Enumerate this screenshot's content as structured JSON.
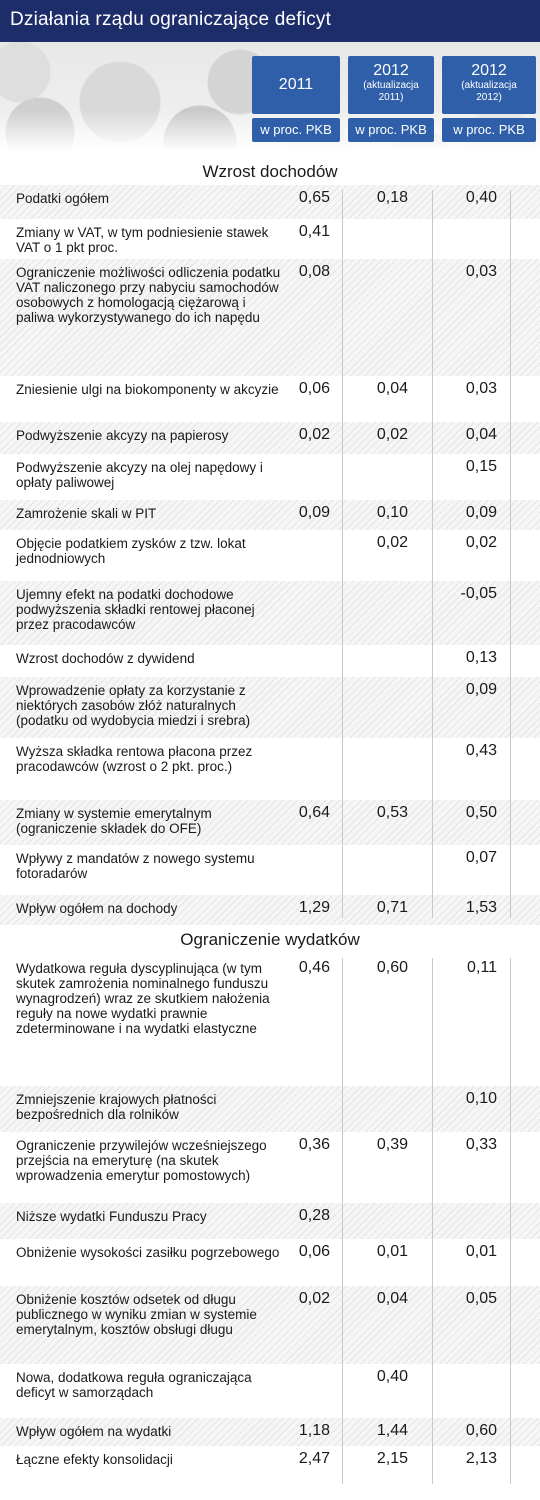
{
  "title": "Działania rządu ograniczające deficyt",
  "columns": [
    {
      "year": "2011",
      "sub": "",
      "unit": "w proc. PKB"
    },
    {
      "year": "2012",
      "sub": "(aktualizacja 2011)",
      "unit": "w proc. PKB"
    },
    {
      "year": "2012",
      "sub": "(aktualizacja 2012)",
      "unit": "w proc. PKB"
    }
  ],
  "chart_data": {
    "type": "table",
    "title": "Działania rządu ograniczające deficyt",
    "columns": [
      "2011",
      "2012 (aktualizacja 2011)",
      "2012 (aktualizacja 2012)"
    ],
    "unit": "w proc. PKB",
    "sections": [
      {
        "title": "Wzrost dochodów",
        "rows": [
          {
            "label": "Podatki ogółem",
            "values": [
              "0,65",
              "0,18",
              "0,40"
            ]
          },
          {
            "label": "Zmiany w VAT, w tym podniesienie stawek VAT o 1 pkt proc.",
            "values": [
              "0,41",
              "",
              ""
            ]
          },
          {
            "label": "Ograniczenie możliwości odliczenia podatku VAT naliczonego przy nabyciu samochodów osobowych z homologacją ciężarową i paliwa wykorzystywanego do ich napędu",
            "values": [
              "0,08",
              "",
              "0,03"
            ]
          },
          {
            "label": "Zniesienie ulgi na biokomponenty w akcyzie",
            "values": [
              "0,06",
              "0,04",
              "0,03"
            ]
          },
          {
            "label": "Podwyższenie akcyzy na papierosy",
            "values": [
              "0,02",
              "0,02",
              "0,04"
            ]
          },
          {
            "label": "Podwyższenie akcyzy na olej napędowy i opłaty paliwowej",
            "values": [
              "",
              "",
              "0,15"
            ]
          },
          {
            "label": "Zamrożenie skali w PIT",
            "values": [
              "0,09",
              "0,10",
              "0,09"
            ]
          },
          {
            "label": "Objęcie podatkiem zysków z tzw. lokat jednodniowych",
            "values": [
              "",
              "0,02",
              "0,02"
            ]
          },
          {
            "label": "Ujemny efekt na podatki dochodowe podwyższenia składki rentowej płaconej przez pracodawców",
            "values": [
              "",
              "",
              "-0,05"
            ]
          },
          {
            "label": "Wzrost dochodów z dywidend",
            "values": [
              "",
              "",
              "0,13"
            ]
          },
          {
            "label": "Wprowadzenie opłaty za korzystanie z niektórych zasobów złóż naturalnych (podatku od wydobycia miedzi i srebra)",
            "values": [
              "",
              "",
              "0,09"
            ]
          },
          {
            "label": "Wyższa składka rentowa płacona przez pracodawców (wzrost o 2 pkt. proc.)",
            "values": [
              "",
              "",
              "0,43"
            ]
          },
          {
            "label": "Zmiany w systemie emerytalnym (ograniczenie składek do OFE)",
            "values": [
              "0,64",
              "0,53",
              "0,50"
            ]
          },
          {
            "label": "Wpływy z mandatów z nowego systemu fotoradarów",
            "values": [
              "",
              "",
              "0,07"
            ]
          },
          {
            "label": "Wpływ ogółem na dochody",
            "values": [
              "1,29",
              "0,71",
              "1,53"
            ]
          }
        ]
      },
      {
        "title": "Ograniczenie wydatków",
        "rows": [
          {
            "label": "Wydatkowa reguła dyscyplinująca (w tym skutek zamrożenia nominalnego funduszu wynagrodzeń) wraz ze skutkiem nałożenia reguły na nowe wydatki prawnie zdeterminowane i na wydatki elastyczne",
            "values": [
              "0,46",
              "0,60",
              "0,11"
            ]
          },
          {
            "label": "Zmniejszenie krajowych płatności bezpośrednich dla rolników",
            "values": [
              "",
              "",
              "0,10"
            ]
          },
          {
            "label": "Ograniczenie przywilejów wcześniejszego przejścia na emeryturę (na skutek wprowadzenia emerytur pomostowych)",
            "values": [
              "0,36",
              "0,39",
              "0,33"
            ]
          },
          {
            "label": "Niższe wydatki Funduszu Pracy",
            "values": [
              "0,28",
              "",
              ""
            ]
          },
          {
            "label": "Obniżenie wysokości zasiłku pogrzebowego",
            "values": [
              "0,06",
              "0,01",
              "0,01"
            ]
          },
          {
            "label": "Obniżenie kosztów odsetek od długu publicznego w wyniku zmian w systemie emerytalnym, kosztów obsługi długu",
            "values": [
              "0,02",
              "0,04",
              "0,05"
            ]
          },
          {
            "label": "Nowa, dodatkowa reguła ograniczająca deficyt w samorządach",
            "values": [
              "",
              "0,40",
              ""
            ]
          },
          {
            "label": "Wpływ ogółem na wydatki",
            "values": [
              "1,18",
              "1,44",
              "0,60"
            ]
          },
          {
            "label": "Łączne efekty konsolidacji",
            "values": [
              "2,47",
              "2,15",
              "2,13"
            ]
          }
        ]
      }
    ]
  }
}
